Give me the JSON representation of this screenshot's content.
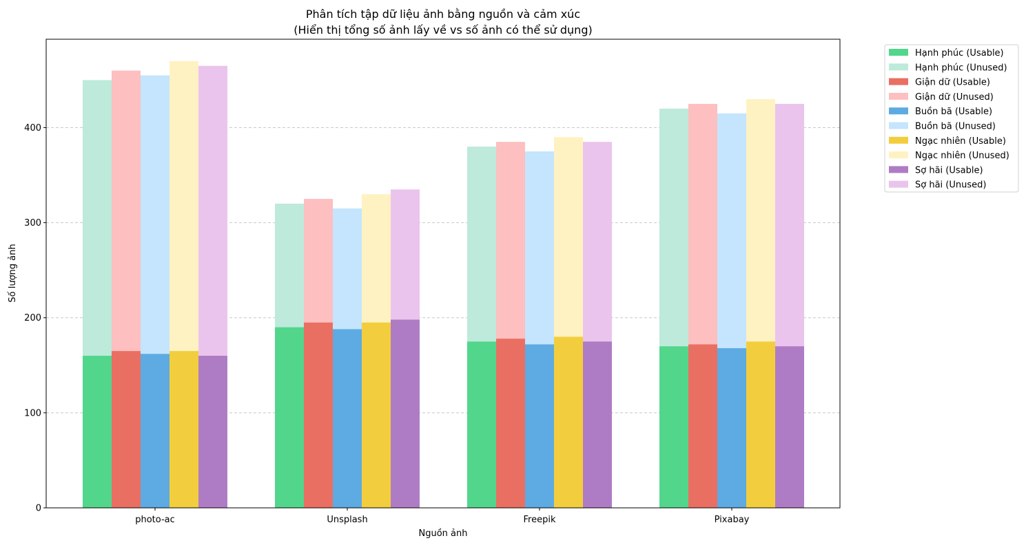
{
  "chart_data": {
    "type": "bar",
    "title": "Phân tích tập dữ liệu ảnh bằng nguồn và cảm xúc",
    "subtitle": "(Hiển thị tổng số ảnh lấy về vs số ảnh có thể sử dụng)",
    "xlabel": "Nguồn ảnh",
    "ylabel": "Số lượng ảnh",
    "ylim": [
      0,
      493
    ],
    "yticks": [
      0,
      100,
      200,
      300,
      400
    ],
    "grid": "y-dashed",
    "legend_position": "outside-top-right",
    "categories": [
      "photo-ac",
      "Unsplash",
      "Freepik",
      "Pixabay"
    ],
    "series": [
      {
        "name": "Hạnh phúc",
        "usable_label": "Hạnh phúc (Usable)",
        "unused_label": "Hạnh phúc (Unused)",
        "usable_color": "#52d68c",
        "unused_color": "#bdeadb",
        "total": [
          450,
          320,
          380,
          420
        ],
        "usable": [
          160,
          190,
          175,
          170
        ]
      },
      {
        "name": "Giận dữ",
        "usable_label": "Giận dữ (Usable)",
        "unused_label": "Giận dữ (Unused)",
        "usable_color": "#ea6f63",
        "unused_color": "#fdbfbf",
        "total": [
          460,
          325,
          385,
          425
        ],
        "usable": [
          165,
          195,
          178,
          172
        ]
      },
      {
        "name": "Buồn bã",
        "usable_label": "Buồn bã (Usable)",
        "unused_label": "Buồn bã (Unused)",
        "usable_color": "#5dabe2",
        "unused_color": "#c4e5fd",
        "total": [
          455,
          315,
          375,
          415
        ],
        "usable": [
          162,
          188,
          172,
          168
        ]
      },
      {
        "name": "Ngạc nhiên",
        "usable_label": "Ngạc nhiên (Usable)",
        "unused_label": "Ngạc nhiên (Unused)",
        "usable_color": "#f2ce3e",
        "unused_color": "#fff2c2",
        "total": [
          470,
          330,
          390,
          430
        ],
        "usable": [
          165,
          195,
          180,
          175
        ]
      },
      {
        "name": "Sợ hãi",
        "usable_label": "Sợ hãi (Usable)",
        "unused_label": "Sợ hãi (Unused)",
        "usable_color": "#ae7cc4",
        "unused_color": "#eac4ec",
        "total": [
          465,
          335,
          385,
          425
        ],
        "usable": [
          160,
          198,
          175,
          170
        ]
      }
    ]
  }
}
